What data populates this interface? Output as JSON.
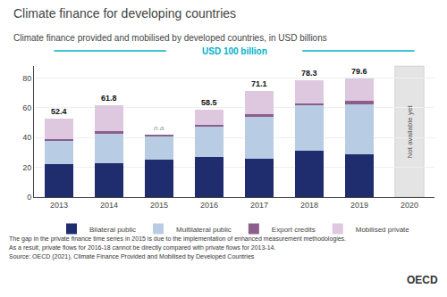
{
  "chart_data": {
    "type": "bar",
    "stacked": true,
    "title": "Climate finance for developing countries",
    "subtitle": "Climate finance provided and mobilised by developed countries, in USD billions",
    "categories": [
      "2013",
      "2014",
      "2015",
      "2016",
      "2017",
      "2018",
      "2019",
      "2020"
    ],
    "series": [
      {
        "name": "Bilateral public",
        "color": "#1f2d6e",
        "values": [
          22.0,
          22.5,
          25.0,
          27.0,
          26.0,
          31.0,
          28.5,
          0
        ]
      },
      {
        "name": "Multilateral public",
        "color": "#b8cce4",
        "values": [
          15.5,
          20.0,
          15.5,
          20.0,
          28.0,
          30.5,
          34.0,
          0
        ]
      },
      {
        "name": "Export credits",
        "color": "#8b5e8b",
        "values": [
          1.5,
          2.0,
          1.5,
          1.5,
          1.5,
          1.5,
          2.0,
          0
        ]
      },
      {
        "name": "Mobilised private",
        "color": "#ddc8e0",
        "values": [
          13.4,
          17.3,
          0.0,
          10.0,
          15.6,
          15.3,
          15.1,
          0
        ]
      }
    ],
    "total_labels": [
      "52.4",
      "61.8",
      "n.a.",
      "58.5",
      "71.1",
      "78.3",
      "79.6",
      null
    ],
    "ylim": [
      0,
      88
    ],
    "yticks": [
      0,
      20,
      40,
      60,
      80
    ],
    "grid": true,
    "legend": "bottom",
    "usd_label": {
      "text": "USD 100 billion",
      "color": "#00b0c8"
    },
    "annotations": [
      {
        "text": "Not available yet",
        "category": "2020"
      }
    ],
    "footnotes": [
      "The gap in the private finance time series in 2015 is due to the implementation of enhanced measurement methodologies.",
      "As a result, private flows for 2016-18 cannot be directly compared with private flows for 2013-14."
    ],
    "source": "Source: OECD (2021), Climate Finance Provided and Mobilised by Developed Countries",
    "logo": "OECD"
  }
}
